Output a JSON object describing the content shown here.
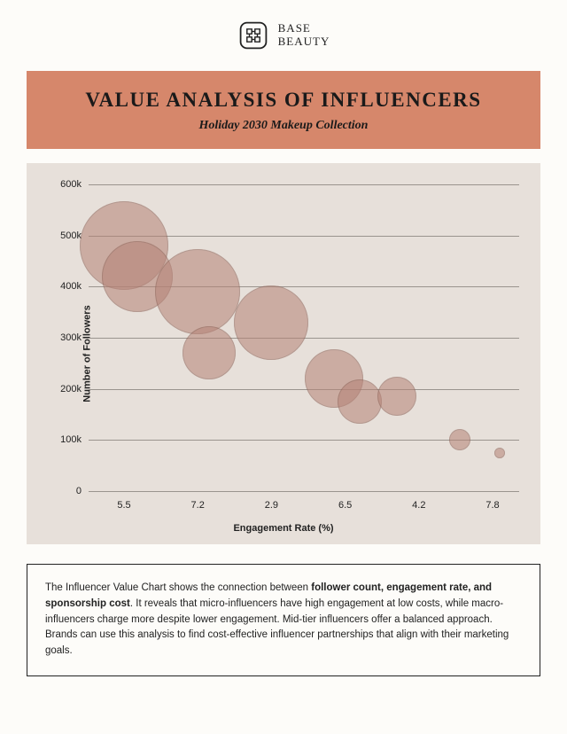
{
  "logo": {
    "line1": "BASE",
    "line2": "BEAUTY"
  },
  "banner": {
    "title": "VALUE ANALYSIS OF INFLUENCERS",
    "subtitle": "Holiday 2030 Makeup Collection",
    "bg_color": "#d6876b",
    "title_fontsize": 23,
    "subtitle_fontsize": 14
  },
  "chart": {
    "type": "bubble",
    "bg_color": "#e7e0da",
    "grid_color": "#9a948e",
    "bubble_fill": "#b58276",
    "bubble_opacity": 0.55,
    "bubble_stroke": "#8a6055",
    "ylabel": "Number of Followers",
    "xlabel": "Engagement Rate (%)",
    "label_fontsize": 11,
    "tick_fontsize": 11,
    "ylim": [
      0,
      600000
    ],
    "ytick_step": 100000,
    "ytick_labels": [
      "0",
      "100k",
      "200k",
      "300k",
      "400k",
      "500k",
      "600k"
    ],
    "x_positions": [
      0,
      1,
      2,
      3,
      4,
      5
    ],
    "x_labels": [
      "5.5",
      "7.2",
      "2.9",
      "6.5",
      "4.2",
      "7.8"
    ],
    "bubbles": [
      {
        "xi": 0.0,
        "y": 480000,
        "r": 50
      },
      {
        "xi": 0.18,
        "y": 420000,
        "r": 40
      },
      {
        "xi": 1.0,
        "y": 390000,
        "r": 48
      },
      {
        "xi": 1.15,
        "y": 270000,
        "r": 30
      },
      {
        "xi": 2.0,
        "y": 330000,
        "r": 42
      },
      {
        "xi": 2.85,
        "y": 220000,
        "r": 33
      },
      {
        "xi": 3.2,
        "y": 175000,
        "r": 25
      },
      {
        "xi": 3.7,
        "y": 185000,
        "r": 22
      },
      {
        "xi": 4.55,
        "y": 100000,
        "r": 12
      },
      {
        "xi": 5.1,
        "y": 75000,
        "r": 6
      }
    ]
  },
  "description": {
    "pre": "The Influencer Value Chart shows the connection between ",
    "bold": "follower count, engagement rate, and sponsorship cost",
    "post": ". It reveals that micro-influencers have high engagement at low costs, while macro-influencers charge more despite lower engagement. Mid-tier influencers offer a balanced approach. Brands can use this analysis to find cost-effective influencer partnerships that align with their marketing goals."
  }
}
